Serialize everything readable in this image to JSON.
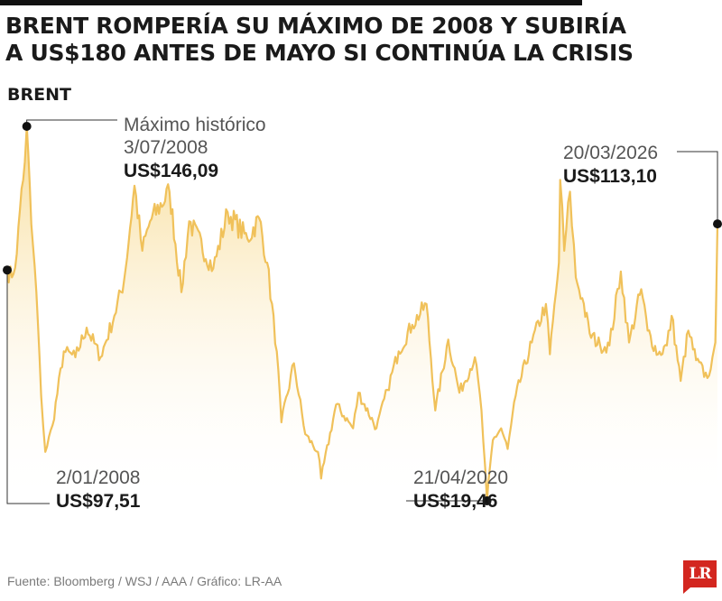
{
  "header": {
    "title_line1": "BRENT ROMPERÍA SU MÁXIMO DE 2008 Y SUBIRÍA",
    "title_line2": "A US$180 ANTES DE MAYO SI CONTINÚA LA CRISIS",
    "series_label": "BRENT"
  },
  "colors": {
    "line": "#f0c15a",
    "fill_top": "#f7d88a",
    "fill_bottom": "#ffffff",
    "marker": "#111111",
    "leader": "#333333",
    "brand": "#d3261f"
  },
  "chart_data": {
    "type": "area",
    "title": "BRENT ROMPERÍA SU MÁXIMO DE 2008 Y SUBIRÍA A US$180 ANTES DE MAYO SI CONTINÚA LA CRISIS",
    "xlabel": "",
    "ylabel": "",
    "series": [
      {
        "name": "BRENT",
        "points": [
          [
            "2008-01-02",
            97.51
          ],
          [
            "2008-02-15",
            95
          ],
          [
            "2008-04-01",
            103
          ],
          [
            "2008-05-15",
            125
          ],
          [
            "2008-06-15",
            134
          ],
          [
            "2008-07-03",
            146.09
          ],
          [
            "2008-08-15",
            113
          ],
          [
            "2008-10-01",
            90
          ],
          [
            "2008-11-15",
            55
          ],
          [
            "2008-12-24",
            36
          ],
          [
            "2009-03-01",
            45
          ],
          [
            "2009-06-15",
            70
          ],
          [
            "2009-10-01",
            68
          ],
          [
            "2010-01-15",
            78
          ],
          [
            "2010-05-25",
            68
          ],
          [
            "2010-10-01",
            82
          ],
          [
            "2011-01-01",
            94
          ],
          [
            "2011-04-08",
            126
          ],
          [
            "2011-06-20",
            104
          ],
          [
            "2011-09-01",
            114
          ],
          [
            "2012-03-01",
            124
          ],
          [
            "2012-06-20",
            90
          ],
          [
            "2012-09-01",
            114
          ],
          [
            "2013-04-15",
            98
          ],
          [
            "2013-08-28",
            117
          ],
          [
            "2014-03-01",
            108
          ],
          [
            "2014-06-19",
            115
          ],
          [
            "2014-09-01",
            100
          ],
          [
            "2014-12-01",
            70
          ],
          [
            "2015-01-13",
            46
          ],
          [
            "2015-05-10",
            66
          ],
          [
            "2015-08-24",
            42
          ],
          [
            "2015-12-21",
            36
          ],
          [
            "2016-01-20",
            27
          ],
          [
            "2016-06-08",
            52
          ],
          [
            "2016-11-14",
            44
          ],
          [
            "2017-01-03",
            56
          ],
          [
            "2017-06-21",
            44
          ],
          [
            "2017-10-01",
            57
          ],
          [
            "2018-01-15",
            70
          ],
          [
            "2018-05-22",
            79
          ],
          [
            "2018-10-03",
            86
          ],
          [
            "2018-12-24",
            50
          ],
          [
            "2019-04-25",
            74
          ],
          [
            "2019-08-07",
            56
          ],
          [
            "2019-12-30",
            68
          ],
          [
            "2020-03-01",
            50
          ],
          [
            "2020-04-21",
            19.46
          ],
          [
            "2020-06-15",
            40
          ],
          [
            "2020-09-01",
            44
          ],
          [
            "2020-11-01",
            37
          ],
          [
            "2021-01-15",
            55
          ],
          [
            "2021-06-15",
            73
          ],
          [
            "2021-10-25",
            86
          ],
          [
            "2021-12-01",
            69
          ],
          [
            "2022-02-24",
            100
          ],
          [
            "2022-03-08",
            128
          ],
          [
            "2022-04-15",
            104
          ],
          [
            "2022-06-08",
            124
          ],
          [
            "2022-08-01",
            95
          ],
          [
            "2022-10-01",
            88
          ],
          [
            "2022-12-09",
            76
          ],
          [
            "2023-03-17",
            72
          ],
          [
            "2023-06-12",
            72
          ],
          [
            "2023-09-27",
            97
          ],
          [
            "2023-12-13",
            73
          ],
          [
            "2024-04-05",
            91
          ],
          [
            "2024-06-04",
            77
          ],
          [
            "2024-09-10",
            69
          ],
          [
            "2024-12-01",
            72
          ],
          [
            "2025-01-15",
            82
          ],
          [
            "2025-04-09",
            60
          ],
          [
            "2025-06-20",
            77
          ],
          [
            "2025-09-01",
            67
          ],
          [
            "2025-12-15",
            61
          ],
          [
            "2026-02-01",
            68
          ],
          [
            "2026-02-28",
            73
          ],
          [
            "2026-03-10",
            92
          ],
          [
            "2026-03-20",
            113.1
          ]
        ]
      }
    ],
    "annotations": [
      {
        "kind": "max",
        "label": "Máximo histórico",
        "date": "3/07/2008",
        "value": "US$146,09",
        "x": "2008-07-03",
        "y": 146.09
      },
      {
        "kind": "start",
        "date": "2/01/2008",
        "value": "US$97,51",
        "x": "2008-01-02",
        "y": 97.51
      },
      {
        "kind": "min",
        "date": "21/04/2020",
        "value": "US$19,46",
        "x": "2020-04-21",
        "y": 19.46
      },
      {
        "kind": "last",
        "date": "20/03/2026",
        "value": "US$113,10",
        "x": "2026-03-20",
        "y": 113.1
      }
    ],
    "grid": false,
    "legend": "none"
  },
  "footer": {
    "source": "Fuente: Bloomberg / WSJ / AAA / Gráfico: LR-AA",
    "logo_text": "LR"
  }
}
